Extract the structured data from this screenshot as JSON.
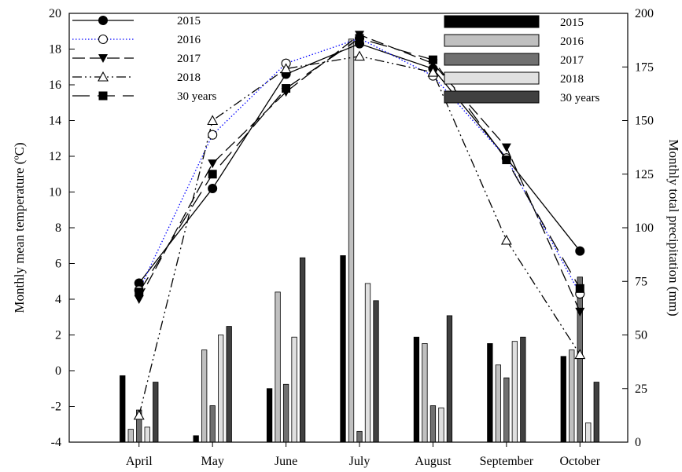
{
  "chart_data": {
    "type": "bar+line",
    "categories": [
      "April",
      "May",
      "June",
      "July",
      "August",
      "September",
      "October"
    ],
    "y_left": {
      "label": "Monthly mean temperature (ºC)",
      "range": [
        -4,
        20
      ],
      "ticks": [
        "-4",
        "-2",
        "0",
        "2",
        "4",
        "6",
        "8",
        "10",
        "12",
        "14",
        "16",
        "18",
        "20"
      ]
    },
    "y_right": {
      "label": "Monthly total precipitation (mm)",
      "range": [
        0,
        200
      ],
      "ticks": [
        "0",
        "25",
        "50",
        "75",
        "100",
        "125",
        "150",
        "175",
        "200"
      ]
    },
    "temperature_series": [
      {
        "name": "2015",
        "values": [
          4.9,
          10.2,
          16.6,
          18.3,
          16.9,
          11.9,
          6.7
        ],
        "marker": "circle-filled",
        "dash": "solid",
        "color": "#000000"
      },
      {
        "name": "2016",
        "values": [
          4.5,
          13.2,
          17.2,
          18.6,
          16.5,
          11.9,
          4.3
        ],
        "marker": "circle-open",
        "dash": "dotted",
        "color": "#0000ff"
      },
      {
        "name": "2017",
        "values": [
          4.0,
          11.6,
          15.6,
          18.8,
          17.2,
          12.5,
          3.3
        ],
        "marker": "triangle-down-filled",
        "dash": "long-dash",
        "color": "#000000"
      },
      {
        "name": "2018",
        "values": [
          -2.5,
          14.0,
          16.9,
          17.6,
          16.7,
          7.3,
          0.9
        ],
        "marker": "triangle-up-open",
        "dash": "dash-dot-dot",
        "color": "#000000"
      },
      {
        "name": "30 years",
        "values": [
          4.4,
          11.0,
          15.8,
          18.6,
          17.4,
          11.8,
          4.6
        ],
        "marker": "square-filled",
        "dash": "long-dash-gap",
        "color": "#000000"
      }
    ],
    "precipitation_series": [
      {
        "name": "2015",
        "values": [
          31,
          3,
          25,
          87,
          49,
          46,
          40
        ],
        "color": "#000000"
      },
      {
        "name": "2016",
        "values": [
          6,
          43,
          70,
          188,
          46,
          36,
          43
        ],
        "color": "#c0c0c0"
      },
      {
        "name": "2017",
        "values": [
          15,
          17,
          27,
          5,
          17,
          30,
          77
        ],
        "color": "#707070"
      },
      {
        "name": "2018",
        "values": [
          7,
          50,
          49,
          74,
          16,
          47,
          9
        ],
        "color": "#e0e0e0"
      },
      {
        "name": "30 years",
        "values": [
          28,
          54,
          86,
          66,
          59,
          49,
          28
        ],
        "color": "#404040"
      }
    ],
    "legend": {
      "temperature": [
        "2015",
        "2016",
        "2017",
        "2018",
        "30 years"
      ],
      "precipitation": [
        "2015",
        "2016",
        "2017",
        "2018",
        "30 years"
      ]
    },
    "grid": false
  }
}
